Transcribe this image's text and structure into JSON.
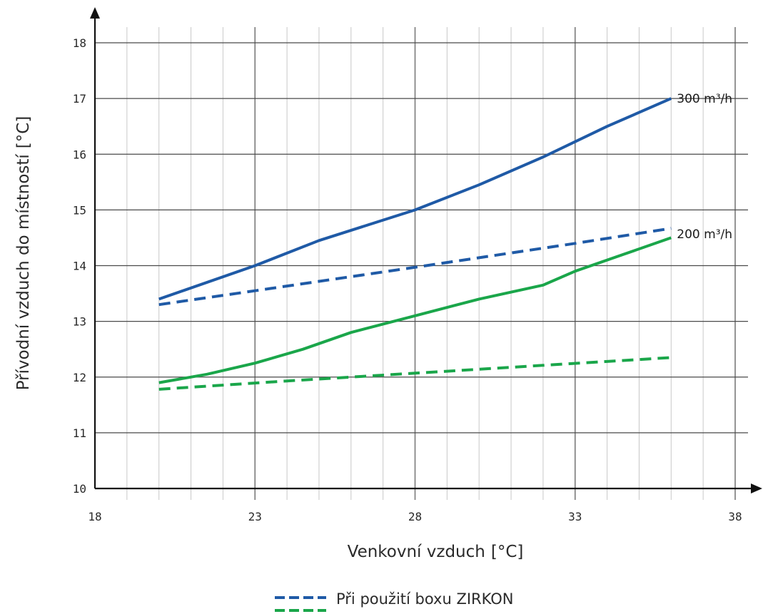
{
  "chart_data": {
    "type": "line",
    "title": "",
    "xlabel": "Venkovní vzduch",
    "xunit": "[°C]",
    "ylabel": "Přívodní vzduch do místností",
    "yunit": "[°C]",
    "xlim": [
      18,
      38
    ],
    "ylim": [
      10,
      18
    ],
    "x_ticks": [
      "18",
      "23",
      "28",
      "33",
      "38"
    ],
    "y_ticks": [
      "10",
      "11",
      "12",
      "13",
      "14",
      "15",
      "16",
      "17",
      "18"
    ],
    "grid": true,
    "series": [
      {
        "key": "blue_solid",
        "label": "300 m³/h",
        "color": "#1f5aa6",
        "dash": false,
        "x": [
          20,
          23,
          25,
          28,
          30,
          32,
          34,
          36
        ],
        "y": [
          13.4,
          14.0,
          14.45,
          15.0,
          15.45,
          15.95,
          16.5,
          17.0
        ]
      },
      {
        "key": "blue_dashed",
        "color": "#1f5aa6",
        "dash": true,
        "x": [
          20,
          23,
          28,
          33,
          36
        ],
        "y": [
          13.3,
          13.55,
          13.97,
          14.4,
          14.67
        ]
      },
      {
        "key": "green_solid",
        "label": "200 m³/h",
        "color": "#1aa64a",
        "dash": false,
        "x": [
          20,
          21.5,
          23,
          24.5,
          26,
          28,
          30,
          32,
          33,
          34.5,
          36
        ],
        "y": [
          11.9,
          12.05,
          12.25,
          12.5,
          12.8,
          13.1,
          13.4,
          13.65,
          13.9,
          14.2,
          14.5
        ]
      },
      {
        "key": "green_dashed",
        "color": "#1aa64a",
        "dash": true,
        "x": [
          20,
          24,
          28,
          32,
          36
        ],
        "y": [
          11.78,
          11.93,
          12.07,
          12.21,
          12.35
        ]
      }
    ],
    "legend": [
      {
        "text": "Při použití boxu ZIRKON",
        "colors": [
          "#1f5aa6",
          "#1aa64a"
        ],
        "dash": true
      }
    ]
  }
}
